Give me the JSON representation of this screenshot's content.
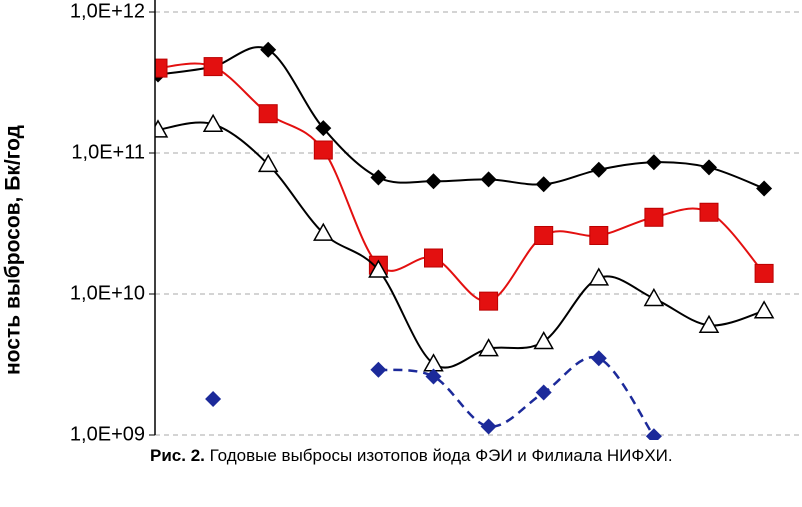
{
  "chart_data": {
    "type": "line",
    "y_label": "ность выбросов, Бк/год",
    "caption_label": "Рис. 2.",
    "caption_text": "Годовые выбросы изотопов йода ФЭИ и Филиала НИФХИ.",
    "log_y": true,
    "grid": true,
    "ylim": [
      1000000000,
      1000000000000
    ],
    "yticks": [
      {
        "value": 1000000000000,
        "label": "1,0E+12"
      },
      {
        "value": 100000000000,
        "label": "1,0E+11"
      },
      {
        "value": 10000000000,
        "label": "1,0E+10"
      },
      {
        "value": 1000000000,
        "label": "1,0E+09"
      }
    ],
    "categories": [
      null,
      null,
      null,
      null,
      null,
      null,
      null,
      null,
      null,
      null,
      null,
      null
    ],
    "series": [
      {
        "name": null,
        "color": "#000000",
        "marker": "diamond",
        "dash": false,
        "values": [
          360000000000,
          410000000000,
          540000000000,
          150000000000,
          67000000000,
          63000000000,
          65000000000,
          60000000000,
          76000000000,
          86000000000,
          79000000000,
          56000000000
        ]
      },
      {
        "name": null,
        "color": "#e31010",
        "marker": "square",
        "dash": false,
        "values": [
          400000000000,
          410000000000,
          190000000000,
          105000000000,
          16000000000,
          18000000000,
          8900000000,
          26000000000,
          26000000000,
          35000000000,
          38000000000,
          14000000000
        ]
      },
      {
        "name": null,
        "color": "#000000",
        "marker": "triangle",
        "dash": false,
        "values": [
          146000000000,
          160000000000,
          83000000000,
          27000000000,
          14800000000,
          3200000000,
          4100000000,
          4600000000,
          13000000000,
          9300000000,
          6000000000,
          7600000000
        ]
      },
      {
        "name": null,
        "color": "#1c2a9a",
        "marker": "diamond",
        "dash": true,
        "values": [
          null,
          1800000000,
          null,
          null,
          2900000000,
          2600000000,
          1150000000,
          2000000000,
          3500000000,
          980000000,
          null,
          null
        ]
      }
    ]
  }
}
